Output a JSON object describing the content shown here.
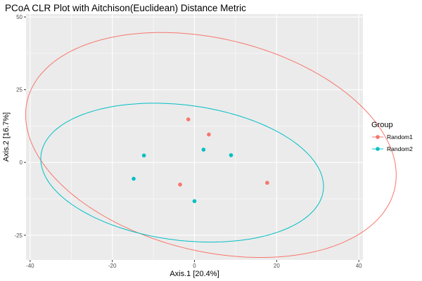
{
  "chart_data": {
    "type": "scatter",
    "title": "PCoA CLR Plot with Aitchison(Euclidean) Distance Metric",
    "xlabel": "Axis.1   [20.4%]",
    "ylabel": "Axis.2   [16.7%]",
    "xlim": [
      -41,
      41
    ],
    "ylim": [
      -33.5,
      51
    ],
    "xticks": [
      -40,
      -20,
      0,
      20,
      40
    ],
    "yticks": [
      -25,
      0,
      25,
      50
    ],
    "xtick_labels": [
      "-40",
      "-20",
      "0",
      "20",
      "40"
    ],
    "ytick_labels": [
      "-25",
      "0",
      "25",
      "50"
    ],
    "grid": true,
    "legend": {
      "title": "Group",
      "position": "right"
    },
    "series": [
      {
        "name": "Random1",
        "color": "#F8766D",
        "points": [
          {
            "x": -1.5,
            "y": 14.8
          },
          {
            "x": 3.5,
            "y": 9.6
          },
          {
            "x": -3.5,
            "y": -7.6
          },
          {
            "x": 17.7,
            "y": -7.0
          }
        ],
        "ellipse": {
          "cx": 4.0,
          "cy": 6.0,
          "rx": 48.0,
          "ry": 35.0,
          "angle_deg": -30.0
        }
      },
      {
        "name": "Random2",
        "color": "#00BFC4",
        "points": [
          {
            "x": -12.3,
            "y": 2.4
          },
          {
            "x": 2.2,
            "y": 4.4
          },
          {
            "x": 8.9,
            "y": 2.5
          },
          {
            "x": -14.8,
            "y": -5.6
          },
          {
            "x": 0.0,
            "y": -13.3
          }
        ],
        "ellipse": {
          "cx": -3.0,
          "cy": -3.5,
          "rx": 35.0,
          "ry": 23.0,
          "angle_deg": -14.0
        }
      }
    ]
  }
}
